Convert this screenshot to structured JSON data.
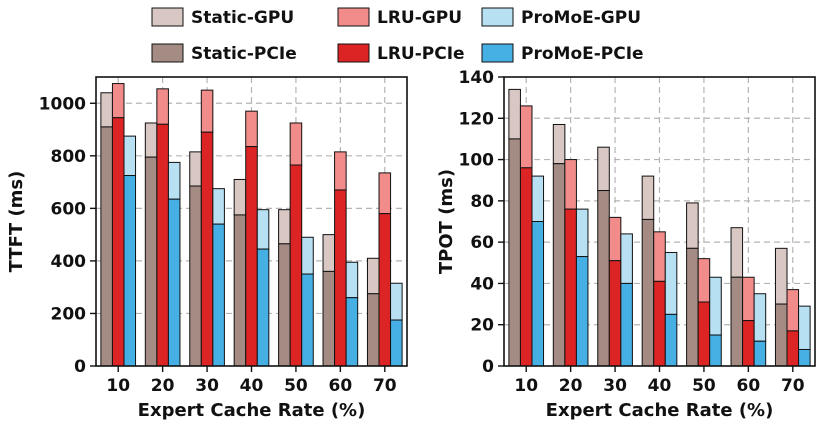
{
  "colors": {
    "static_gpu": "#d8c7c3",
    "static_pcie": "#a48b84",
    "lru_gpu": "#f18c8a",
    "lru_pcie": "#dc2424",
    "promoe_gpu": "#b8e0f3",
    "promoe_pcie": "#46afe3"
  },
  "legend": {
    "items": [
      {
        "label": "Static-GPU",
        "color": "#d8c7c3"
      },
      {
        "label": "LRU-GPU",
        "color": "#f18c8a"
      },
      {
        "label": "ProMoE-GPU",
        "color": "#b8e0f3"
      },
      {
        "label": "Static-PCIe",
        "color": "#a48b84"
      },
      {
        "label": "LRU-PCIe",
        "color": "#dc2424"
      },
      {
        "label": "ProMoE-PCIe",
        "color": "#46afe3"
      }
    ]
  },
  "chart_data": [
    {
      "type": "bar",
      "title": "",
      "xlabel": "Expert Cache Rate (%)",
      "ylabel": "TTFT (ms)",
      "ylim": [
        0,
        1100
      ],
      "yticks": [
        "0",
        "200",
        "400",
        "600",
        "800",
        "1000"
      ],
      "categories": [
        "10",
        "20",
        "30",
        "40",
        "50",
        "60",
        "70"
      ],
      "series": [
        {
          "name": "Static",
          "total": [
            1040,
            925,
            815,
            710,
            595,
            500,
            410
          ],
          "pcie": [
            910,
            795,
            685,
            575,
            465,
            360,
            275
          ]
        },
        {
          "name": "LRU",
          "total": [
            1075,
            1055,
            1050,
            970,
            925,
            815,
            735
          ],
          "pcie": [
            945,
            920,
            890,
            835,
            765,
            670,
            580
          ]
        },
        {
          "name": "ProMoE",
          "total": [
            875,
            775,
            675,
            595,
            490,
            395,
            315
          ],
          "pcie": [
            725,
            635,
            540,
            445,
            350,
            260,
            175
          ]
        }
      ]
    },
    {
      "type": "bar",
      "title": "",
      "xlabel": "Expert Cache Rate (%)",
      "ylabel": "TPOT (ms)",
      "ylim": [
        0,
        140
      ],
      "yticks": [
        "0",
        "20",
        "40",
        "60",
        "80",
        "100",
        "120",
        "140"
      ],
      "categories": [
        "10",
        "20",
        "30",
        "40",
        "50",
        "60",
        "70"
      ],
      "series": [
        {
          "name": "Static",
          "total": [
            134,
            117,
            106,
            92,
            79,
            67,
            57
          ],
          "pcie": [
            110,
            98,
            85,
            71,
            57,
            43,
            30
          ]
        },
        {
          "name": "LRU",
          "total": [
            126,
            100,
            72,
            65,
            52,
            43,
            37
          ],
          "pcie": [
            96,
            76,
            51,
            41,
            31,
            22,
            17
          ]
        },
        {
          "name": "ProMoE",
          "total": [
            92,
            76,
            64,
            55,
            43,
            35,
            29
          ],
          "pcie": [
            70,
            53,
            40,
            25,
            15,
            12,
            8
          ]
        }
      ]
    }
  ]
}
